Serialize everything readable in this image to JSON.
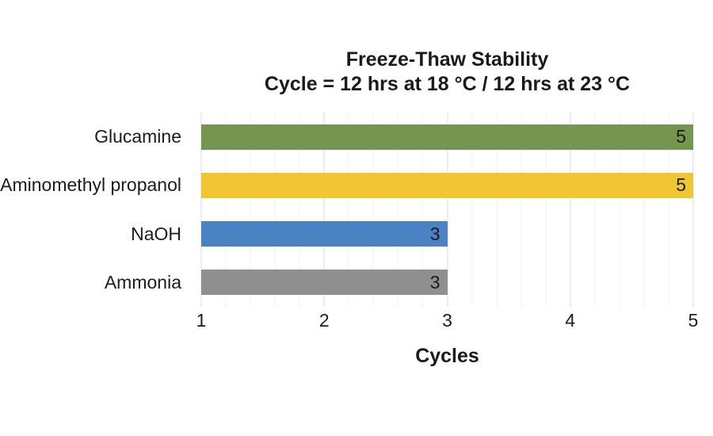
{
  "page": {
    "background_color": "#ffffff"
  },
  "chart_data": {
    "type": "bar",
    "orientation": "horizontal",
    "title": "Freeze-Thaw Stability",
    "subtitle": "Cycle = 12 hrs at 18 °C / 12 hrs at 23 °C",
    "categories": [
      "Glucamine",
      "Aminomethyl propanol",
      "NaOH",
      "Ammonia"
    ],
    "values": [
      5,
      5,
      3,
      3
    ],
    "data_labels": [
      "5",
      "5",
      "3",
      "3"
    ],
    "bar_colors": [
      "#74964E",
      "#F0C733",
      "#4A82C3",
      "#8F8F8F"
    ],
    "xlabel": "Cycles",
    "ylabel": "",
    "xlim": [
      1,
      5
    ],
    "x_ticks": [
      "1",
      "2",
      "3",
      "4",
      "5"
    ],
    "x_tick_values": [
      1,
      2,
      3,
      4,
      5
    ],
    "x_minor_step": 0.2,
    "grid": "vertical, minor + major",
    "legend": "none",
    "grid_colors": {
      "minor": "#eef1f6",
      "major": "#d5dde9"
    },
    "text_color": "#1a1a1a"
  }
}
